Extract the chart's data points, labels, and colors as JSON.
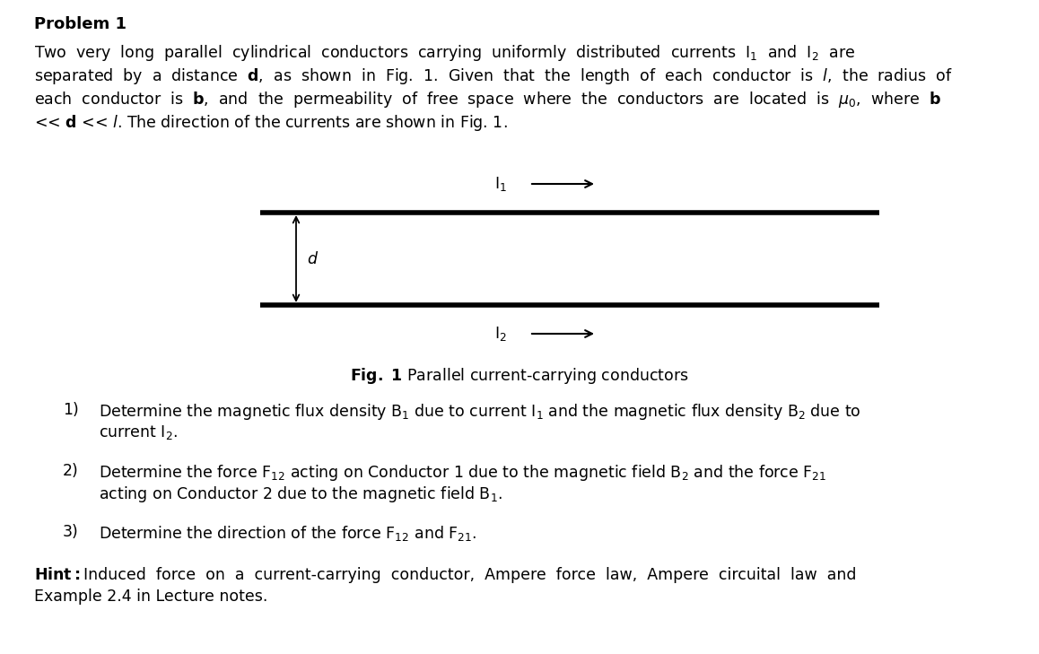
{
  "title": "Problem 1",
  "bg_color": "#ffffff",
  "text_color": "#000000",
  "fig_width": 11.58,
  "fig_height": 7.29,
  "conductor_color": "#000000",
  "conductor_lw": 4.0,
  "arrow_color": "#000000",
  "para1_lines": [
    "Two  very  long  parallel  cylindrical  conductors  carrying  uniformly  distributed  currents  I$_1$  and  I$_2$  are",
    "separated  by  a  distance  $\\mathbf{d}$,  as  shown  in  Fig.  1.  Given  that  the  length  of  each  conductor  is  $\\mathit{l}$,  the  radius  of",
    "each  conductor  is  $\\mathbf{b}$,  and  the  permeability  of  free  space  where  the  conductors  are  located  is  $\\mu_0$,  where  $\\mathbf{b}$",
    "<< $\\mathbf{d}$ << $\\mathit{l}$. The direction of the currents are shown in Fig. 1."
  ],
  "item1_lines": [
    "Determine the magnetic flux density B$_1$ due to current I$_1$ and the magnetic flux density B$_2$ due to",
    "current I$_2$."
  ],
  "item2_lines": [
    "Determine the force F$_{12}$ acting on Conductor 1 due to the magnetic field B$_2$ and the force F$_{21}$",
    "acting on Conductor 2 due to the magnetic field B$_1$."
  ],
  "item3": "Determine the direction of the force F$_{12}$ and F$_{21}$.",
  "hint_line1": "Induced  force  on  a  current-carrying  conductor,  Ampere  force  law,  Ampere  circuital  law  and",
  "hint_line2": "Example 2.4 in Lecture notes.",
  "fig_caption": "Parallel current-carrying conductors"
}
